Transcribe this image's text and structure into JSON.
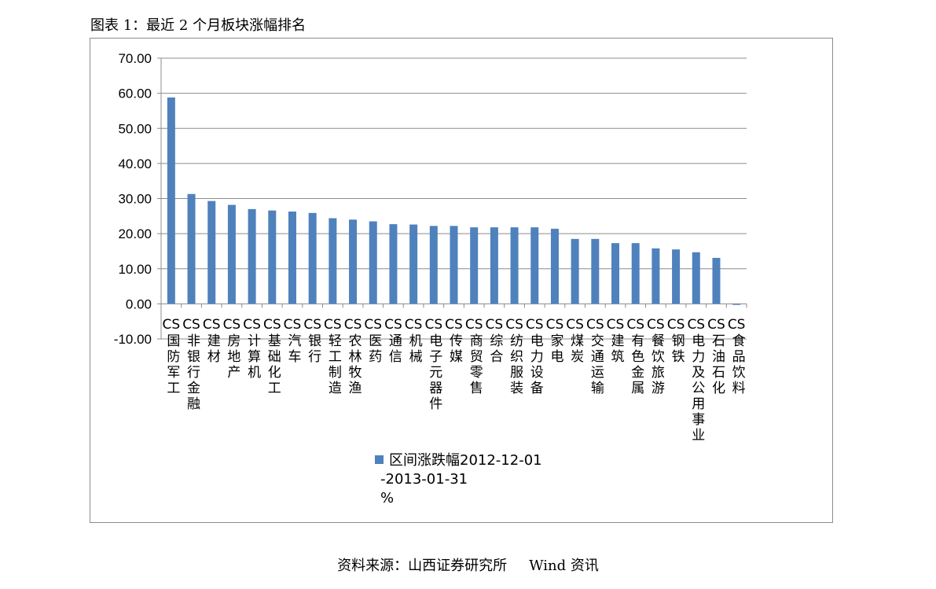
{
  "figure": {
    "title": "图表 1：最近 2 个月板块涨幅排名",
    "source_label": "资料来源：山西证券研究所",
    "source_vendor": "Wind 资讯"
  },
  "chart_data": {
    "type": "bar",
    "title": "",
    "xlabel": "",
    "ylabel": "",
    "ylim": [
      -10,
      70
    ],
    "yticks": [
      "70.00",
      "60.00",
      "50.00",
      "40.00",
      "30.00",
      "20.00",
      "10.00",
      "0.00",
      "-10.00"
    ],
    "grid": true,
    "legend_position": "bottom",
    "bar_color": "#4f81bd",
    "categories": [
      "CS国防军工",
      "CS非银行金融",
      "CS建材",
      "CS房地产",
      "CS计算机",
      "CS基础化工",
      "CS汽车",
      "CS银行",
      "CS轻工制造",
      "CS农林牧渔",
      "CS医药",
      "CS通信",
      "CS机械",
      "CS电子元器件",
      "CS传媒",
      "CS商贸零售",
      "CS综合",
      "CS纺织服装",
      "CS电力设备",
      "CS家电",
      "CS煤炭",
      "CS交通运输",
      "CS建筑",
      "CS有色金属",
      "CS餐饮旅游",
      "CS钢铁",
      "CS电力及公用事业",
      "CS石油石化",
      "CS食品饮料"
    ],
    "series": [
      {
        "name": "区间涨跌幅2012-12-01-2013-01-31%",
        "legend_lines": [
          "区间涨跌幅2012-12-01",
          "-2013-01-31",
          "%"
        ],
        "values": [
          58.8,
          31.3,
          29.3,
          28.2,
          27.0,
          26.6,
          26.3,
          25.9,
          24.4,
          24.0,
          23.5,
          22.7,
          22.6,
          22.2,
          22.2,
          21.8,
          21.8,
          21.8,
          21.8,
          21.4,
          18.5,
          18.5,
          17.3,
          17.3,
          15.8,
          15.5,
          14.7,
          13.1,
          -0.3
        ]
      }
    ]
  }
}
